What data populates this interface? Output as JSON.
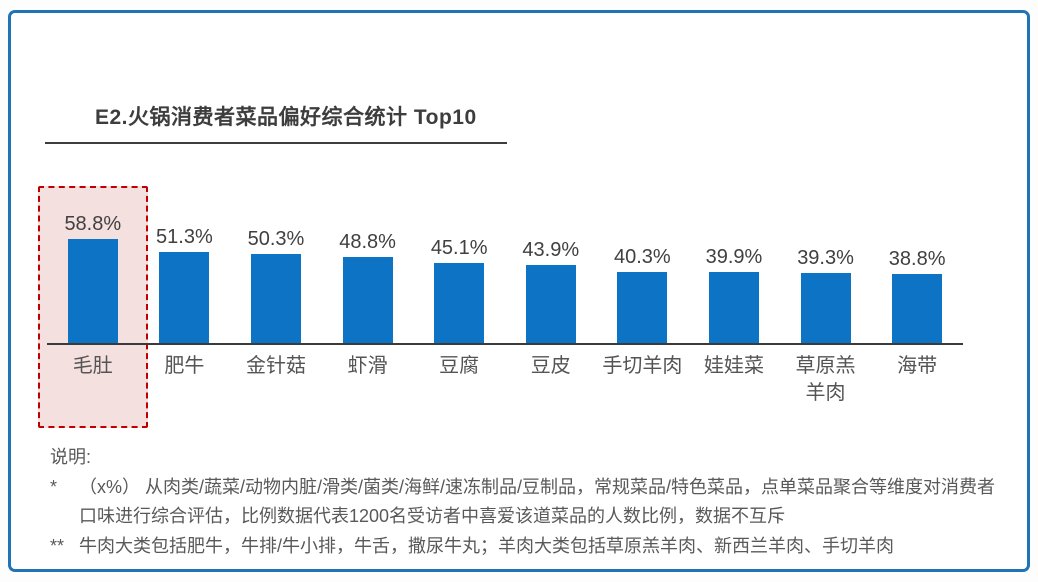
{
  "card": {
    "title": "E2.火锅消费者菜品偏好综合统计 Top10"
  },
  "chart_data": {
    "type": "bar",
    "title": "E2.火锅消费者菜品偏好综合统计 Top10",
    "categories": [
      "毛肚",
      "肥牛",
      "金针菇",
      "虾滑",
      "豆腐",
      "豆皮",
      "手切羊肉",
      "娃娃菜",
      "草原羔羊肉",
      "海带"
    ],
    "categories_display": [
      "毛肚",
      "肥牛",
      "金针菇",
      "虾滑",
      "豆腐",
      "豆皮",
      "手切羊肉",
      "娃娃菜",
      "草原羔\n羊肉",
      "海带"
    ],
    "values": [
      58.8,
      51.3,
      50.3,
      48.8,
      45.1,
      43.9,
      40.3,
      39.9,
      39.3,
      38.8
    ],
    "value_labels": [
      "58.8%",
      "51.3%",
      "50.3%",
      "48.8%",
      "45.1%",
      "43.9%",
      "40.3%",
      "39.9%",
      "39.3%",
      "38.8%"
    ],
    "unit": "%",
    "highlighted_category": "毛肚",
    "ylim": [
      0,
      65
    ],
    "xlabel": "",
    "ylabel": "",
    "grid": false,
    "legend": false
  },
  "notes": {
    "heading": "说明:",
    "items": [
      {
        "marker": "*",
        "text": "（x%） 从肉类/蔬菜/动物内脏/滑类/菌类/海鲜/速冻制品/豆制品，常规菜品/特色菜品，点单菜品聚合等维度对消费者口味进行综合评估，比例数据代表1200名受访者中喜爱该道菜品的人数比例，数据不互斥"
      },
      {
        "marker": "**",
        "text": "牛肉大类包括肥牛，牛排/牛小排，牛舌，撒尿牛丸；羊肉大类包括草原羔羊肉、新西兰羊肉、手切羊肉"
      }
    ]
  },
  "colors": {
    "card_border": "#2173b8",
    "bar": "#0d74c5",
    "highlight_fill": "#f3e0df",
    "highlight_border": "#c00000",
    "axis": "#3a3a3a",
    "title_text": "#3d3d3d",
    "category_text": "#545454",
    "note_text": "#595959"
  }
}
